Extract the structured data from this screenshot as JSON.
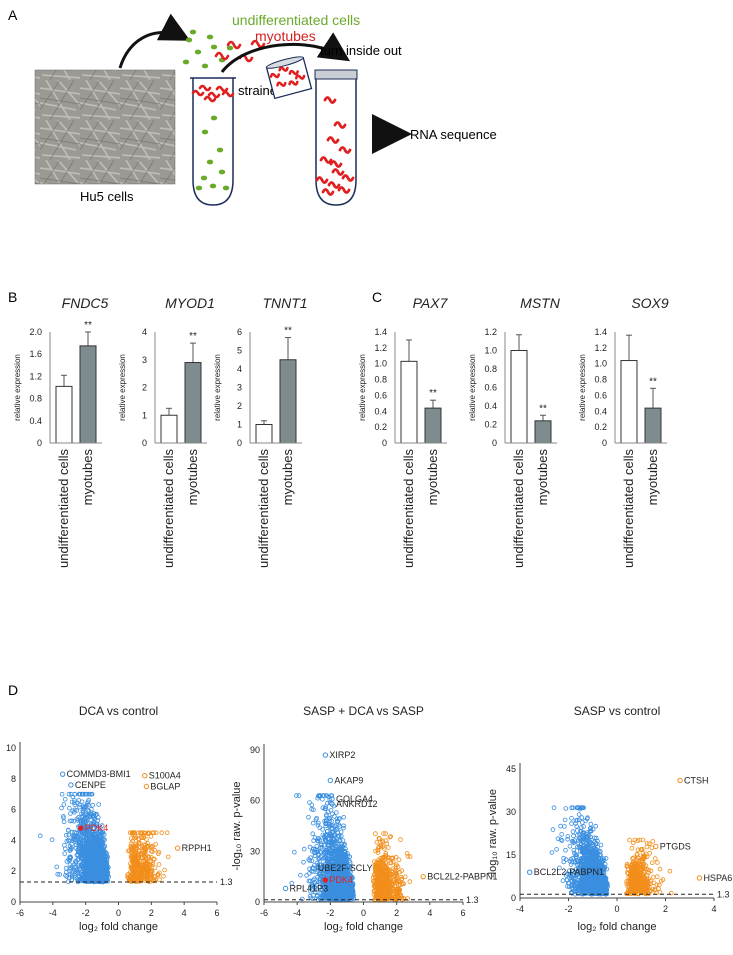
{
  "panels": {
    "A": {
      "letter": "A",
      "cells_label": "Hu5 cells",
      "undiff_label": "undifferentiated cells",
      "myotubes_label": "myotubes",
      "strainer_label": "strainer",
      "turn_label": "turn inside out",
      "rna_label": "RNA sequence"
    },
    "B": {
      "letter": "B"
    },
    "C": {
      "letter": "C"
    },
    "D": {
      "letter": "D"
    }
  },
  "colors": {
    "undiff": "#6aaa2a",
    "myotube": "#e02020",
    "bar_fill": "#7f8c8f",
    "blue": "#3b8fe0",
    "orange": "#f28e1c",
    "highlight": "#e02020"
  },
  "chart_data": [
    {
      "type": "bar",
      "title": "FNDC5",
      "ylabel": "relative expression",
      "categories": [
        "undifferentiated cells",
        "myotubes"
      ],
      "values": [
        1.02,
        1.75
      ],
      "errors": [
        0.2,
        0.25
      ],
      "ylim": [
        0,
        2.0
      ],
      "yticks": [
        "0",
        "0.4",
        "0.8",
        "1.2",
        "1.6",
        "2.0"
      ],
      "significance": "**"
    },
    {
      "type": "bar",
      "title": "MYOD1",
      "ylabel": "relative expression",
      "categories": [
        "undifferentiated cells",
        "myotubes"
      ],
      "values": [
        1.0,
        2.9
      ],
      "errors": [
        0.25,
        0.7
      ],
      "ylim": [
        0,
        4
      ],
      "yticks": [
        "0",
        "1",
        "2",
        "3",
        "4"
      ],
      "significance": "**"
    },
    {
      "type": "bar",
      "title": "TNNT1",
      "ylabel": "relative expression",
      "categories": [
        "undifferentiated cells",
        "myotubes"
      ],
      "values": [
        1.0,
        4.5
      ],
      "errors": [
        0.2,
        1.2
      ],
      "ylim": [
        0,
        6
      ],
      "yticks": [
        "0",
        "1",
        "2",
        "3",
        "4",
        "5",
        "6"
      ],
      "significance": "**"
    },
    {
      "type": "bar",
      "title": "PAX7",
      "ylabel": "relative expression",
      "categories": [
        "undifferentiated cells",
        "myotubes"
      ],
      "values": [
        1.03,
        0.44
      ],
      "errors": [
        0.27,
        0.1
      ],
      "ylim": [
        0,
        1.4
      ],
      "yticks": [
        "0",
        "0.2",
        "0.4",
        "0.6",
        "0.8",
        "1.0",
        "1.2",
        "1.4"
      ],
      "significance": "**"
    },
    {
      "type": "bar",
      "title": "MSTN",
      "ylabel": "relative expression",
      "categories": [
        "undifferentiated cells",
        "myotubes"
      ],
      "values": [
        1.0,
        0.24
      ],
      "errors": [
        0.17,
        0.06
      ],
      "ylim": [
        0,
        1.2
      ],
      "yticks": [
        "0",
        "0.2",
        "0.4",
        "0.6",
        "0.8",
        "1.0",
        "1.2"
      ],
      "significance": "**"
    },
    {
      "type": "bar",
      "title": "SOX9",
      "ylabel": "relative expression",
      "categories": [
        "undifferentiated cells",
        "myotubes"
      ],
      "values": [
        1.04,
        0.44
      ],
      "errors": [
        0.32,
        0.25
      ],
      "ylim": [
        0,
        1.4
      ],
      "yticks": [
        "0",
        "0.2",
        "0.4",
        "0.6",
        "0.8",
        "1.0",
        "1.2",
        "1.4"
      ],
      "significance": "**"
    },
    {
      "type": "scatter",
      "title": "DCA vs control",
      "xlabel": "log₂ fold change",
      "ylabel": "-log₁₀ raw. p-value",
      "xlim": [
        -6,
        6
      ],
      "ylim": [
        0,
        10
      ],
      "xticks": [
        "-6",
        "-4",
        "-2",
        "0",
        "2",
        "4",
        "6"
      ],
      "yticks": [
        "0",
        "2",
        "4",
        "6",
        "8",
        "10"
      ],
      "threshold": 1.3,
      "threshold_label": "1.3",
      "seed": 11,
      "n_points": [
        1400,
        380
      ],
      "annotations": [
        {
          "label": "COMMD3-BMI1",
          "x": -3.4,
          "y": 8.3,
          "side": "blue",
          "red": false
        },
        {
          "label": "CENPE",
          "x": -2.9,
          "y": 7.6,
          "side": "blue",
          "red": false
        },
        {
          "label": "PDK4",
          "x": -2.3,
          "y": 4.8,
          "side": "blue",
          "red": true
        },
        {
          "label": "S100A4",
          "x": 1.6,
          "y": 8.2,
          "side": "orange",
          "red": false
        },
        {
          "label": "BGLAP",
          "x": 1.7,
          "y": 7.5,
          "side": "orange",
          "red": false
        },
        {
          "label": "RPPH1",
          "x": 3.6,
          "y": 3.5,
          "side": "orange",
          "red": false
        }
      ]
    },
    {
      "type": "scatter",
      "title": "SASP + DCA vs SASP",
      "xlabel": "log₂ fold change",
      "ylabel": "-log₁₀ raw. p-value",
      "xlim": [
        -6,
        6
      ],
      "ylim": [
        0,
        90
      ],
      "xticks": [
        "-6",
        "-4",
        "-2",
        "0",
        "2",
        "4",
        "6"
      ],
      "yticks": [
        "0",
        "30",
        "60",
        "90"
      ],
      "threshold": 1.3,
      "threshold_label": "1.3",
      "seed": 23,
      "n_points": [
        1500,
        500
      ],
      "annotations": [
        {
          "label": "XIRP2",
          "x": -2.3,
          "y": 87,
          "side": "blue",
          "red": false
        },
        {
          "label": "AKAP9",
          "x": -2.0,
          "y": 72,
          "side": "blue",
          "red": false
        },
        {
          "label": "GOLGA4",
          "x": -1.9,
          "y": 61,
          "side": "blue",
          "red": false
        },
        {
          "label": "ANKRD12",
          "x": -1.9,
          "y": 58,
          "side": "blue",
          "red": false
        },
        {
          "label": "UBE2F-SCLY",
          "x": -3.0,
          "y": 20,
          "side": "blue",
          "red": false
        },
        {
          "label": "PDK4",
          "x": -2.3,
          "y": 13,
          "side": "blue",
          "red": true
        },
        {
          "label": "RPL41P3",
          "x": -4.7,
          "y": 8,
          "side": "blue",
          "red": false
        },
        {
          "label": "BCL2L2-PABPN1",
          "x": 3.6,
          "y": 15,
          "side": "orange",
          "red": false
        }
      ]
    },
    {
      "type": "scatter",
      "title": "SASP vs control",
      "xlabel": "log₂ fold change",
      "ylabel": "-log₁₀ raw. p-value",
      "xlim": [
        -4,
        4
      ],
      "ylim": [
        0,
        45
      ],
      "xticks": [
        "-4",
        "-2",
        "0",
        "2",
        "4"
      ],
      "yticks": [
        "0",
        "15",
        "30",
        "45"
      ],
      "threshold": 1.3,
      "threshold_label": "1.3",
      "seed": 37,
      "n_points": [
        1300,
        420
      ],
      "annotations": [
        {
          "label": "CTSH",
          "x": 2.6,
          "y": 41,
          "side": "orange",
          "red": false
        },
        {
          "label": "PTGDS",
          "x": 1.6,
          "y": 18,
          "side": "orange",
          "red": false
        },
        {
          "label": "HSPA6",
          "x": 3.4,
          "y": 7,
          "side": "orange",
          "red": false
        },
        {
          "label": "BCL2L2-PABPN1",
          "x": -3.6,
          "y": 9,
          "side": "blue",
          "red": false
        }
      ]
    }
  ]
}
